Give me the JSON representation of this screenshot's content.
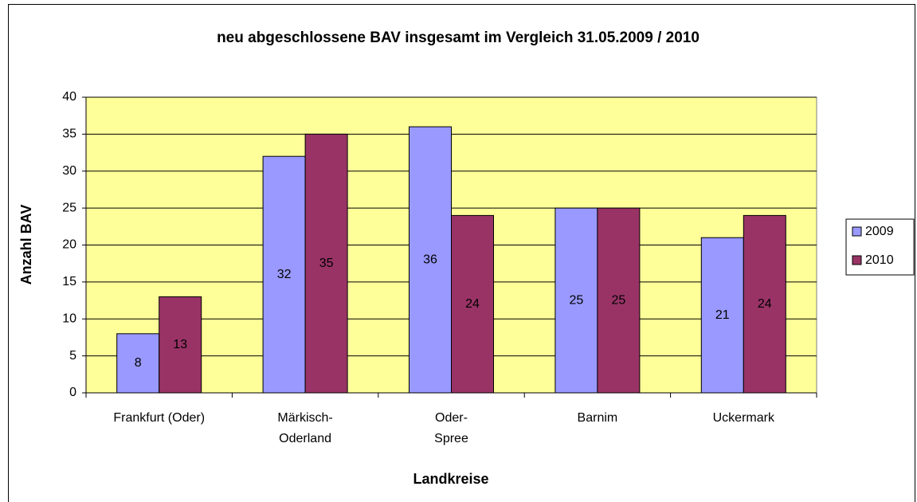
{
  "chart_data": {
    "type": "bar",
    "title": "neu abgeschlossene BAV insgesamt im Vergleich 31.05.2009 / 2010",
    "x_label": "Landkreise",
    "y_label": "Anzahl BAV",
    "categories": [
      "Frankfurt (Oder)",
      "Märkisch-Oderland",
      "Oder-Spree",
      "Barnim",
      "Uckermark"
    ],
    "series": [
      {
        "name": "2009",
        "color": "#9999ff",
        "values": [
          8,
          32,
          36,
          25,
          21
        ]
      },
      {
        "name": "2010",
        "color": "#993366",
        "values": [
          13,
          35,
          24,
          25,
          24
        ]
      }
    ],
    "ylim": [
      0,
      40
    ],
    "yticks": [
      0,
      5,
      10,
      15,
      20,
      25,
      30,
      35,
      40
    ],
    "grid": true,
    "plot_background": "#ffff99",
    "legend": "right"
  }
}
